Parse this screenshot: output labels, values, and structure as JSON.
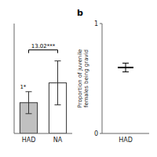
{
  "chart_data": [
    {
      "type": "bar",
      "categories": [
        "HAD",
        "NA"
      ],
      "values": [
        0.28,
        0.46
      ],
      "errors": [
        0.1,
        0.2
      ],
      "colors": [
        "#c0c0c0",
        "#ffffff"
      ],
      "ylim": [
        0,
        1.0
      ],
      "tick_labels": "x",
      "annotations": [
        "13.02***",
        "1*"
      ]
    },
    {
      "type": "errorbar",
      "title": "b",
      "categories": [
        "HAD"
      ],
      "values": [
        0.6
      ],
      "errors": [
        0.04
      ],
      "marker": "dash",
      "color": "#000000",
      "ylabel": "Proportion of juvenile\nfemales being gravid",
      "ylim": [
        0,
        1.0
      ],
      "yticks": [
        0,
        1
      ]
    }
  ]
}
